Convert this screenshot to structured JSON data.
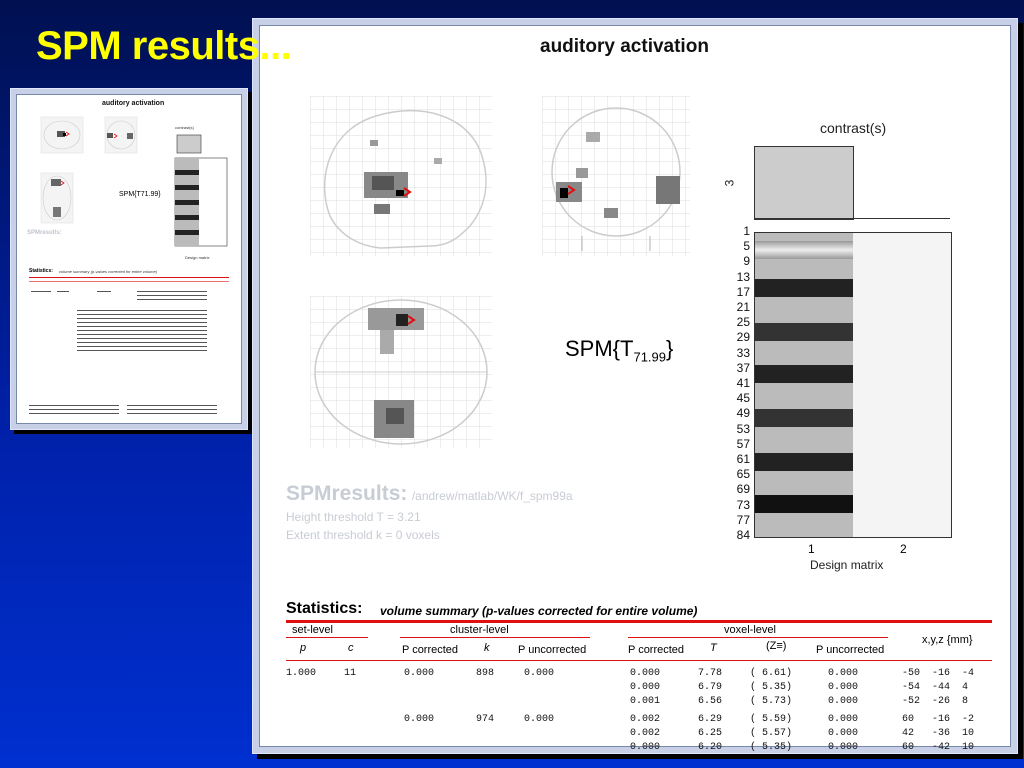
{
  "slide": {
    "title": "SPM results..."
  },
  "document": {
    "title": "auditory activation",
    "contrast_label": "contrast(s)",
    "contrast_number": "3",
    "design_matrix_label": "Design matrix",
    "design_matrix_cols": [
      "1",
      "2"
    ],
    "design_matrix_rows": [
      "1",
      "5",
      "9",
      "13",
      "17",
      "21",
      "25",
      "29",
      "33",
      "37",
      "41",
      "45",
      "49",
      "53",
      "57",
      "61",
      "65",
      "69",
      "73",
      "77",
      "84"
    ],
    "spm_t": {
      "base": "SPM{T",
      "sub": "71.99",
      "close": "}"
    },
    "results": {
      "heading": "SPMresults:",
      "path": "/andrew/matlab/WK/f_spm99a",
      "height_threshold": "Height threshold T = 3.21",
      "extent_threshold": "Extent threshold k = 0 voxels"
    },
    "statistics": {
      "title": "Statistics:",
      "subtitle": "volume summary (p-values corrected for entire volume)",
      "groups": [
        "set-level",
        "cluster-level",
        "voxel-level",
        "x,y,z {mm}"
      ],
      "columns": [
        "p",
        "c",
        "P corrected",
        "k",
        "P uncorrected",
        "P corrected",
        "T",
        "(Z≡)",
        "P uncorrected"
      ],
      "rows": [
        [
          "1.000",
          "11",
          "0.000",
          "898",
          "0.000",
          "0.000",
          "7.78",
          "( 6.61)",
          "0.000",
          "-50",
          "-16",
          "-4"
        ],
        [
          "",
          "",
          "",
          "",
          "",
          "0.000",
          "6.79",
          "( 5.35)",
          "0.000",
          "-54",
          "-44",
          "4"
        ],
        [
          "",
          "",
          "",
          "",
          "",
          "0.001",
          "6.56",
          "( 5.73)",
          "0.000",
          "-52",
          "-26",
          "8"
        ],
        [
          "",
          "",
          "0.000",
          "974",
          "0.000",
          "0.002",
          "6.29",
          "( 5.59)",
          "0.000",
          "60",
          "-16",
          "-2"
        ],
        [
          "",
          "",
          "",
          "",
          "",
          "0.002",
          "6.25",
          "( 5.57)",
          "0.000",
          "42",
          "-36",
          "10"
        ],
        [
          "",
          "",
          "",
          "",
          "",
          "0.000",
          "6.20",
          "( 5.35)",
          "0.000",
          "60",
          "-42",
          "10"
        ]
      ]
    }
  },
  "thumbnail": {
    "title": "auditory activation",
    "contrast_label": "contrast(s)",
    "design_matrix_label": "Design matrix",
    "spm_t": "SPM{T71.99}",
    "results_heading": "SPMresults:",
    "statistics_title": "Statistics:",
    "statistics_subtitle": "volume summary (p-values corrected for entire volume)"
  }
}
